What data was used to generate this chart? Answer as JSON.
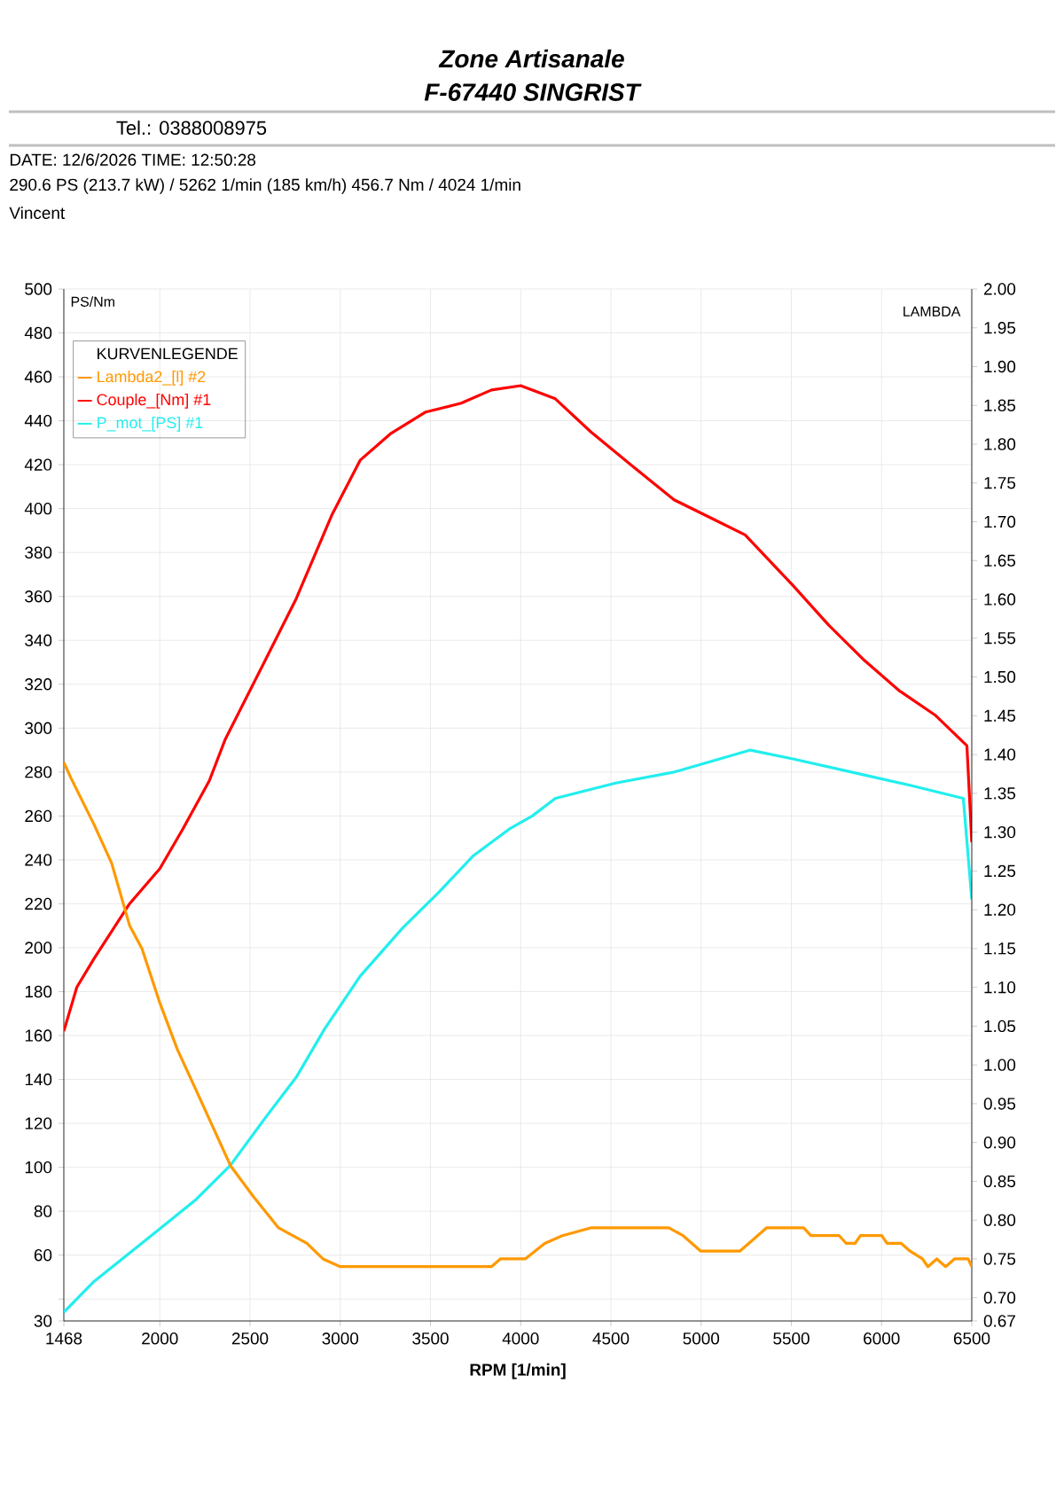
{
  "chart_data": {
    "type": "line",
    "annotations": [
      "Zone Artisanale",
      "F-67440 SINGRIST",
      "Tel.: 0388008975",
      "DATE: 12/6/2026  TIME: 12:50:28",
      "290.6 PS  (213.7 kW) / 5262 1/min (185 km/h)    456.7 Nm / 4024 1/min",
      "Vincent"
    ],
    "xlabel": "RPM  [1/min]",
    "ylabel": "PS/Nm",
    "y2label": "LAMBDA",
    "legend_title": "KURVENLEGENDE",
    "xlim": [
      1468,
      6500
    ],
    "xticks": [
      1468,
      2000,
      2500,
      3000,
      3500,
      4000,
      4500,
      5000,
      5500,
      6000,
      6500
    ],
    "ylim": [
      30,
      500
    ],
    "yticks": [
      30,
      {
        "value": 40,
        "label": null
      },
      60,
      80,
      100,
      120,
      140,
      160,
      180,
      200,
      220,
      240,
      260,
      280,
      300,
      320,
      340,
      360,
      380,
      400,
      420,
      440,
      460,
      480,
      500
    ],
    "y2lim": [
      0.67,
      2.0
    ],
    "y2ticks": [
      {
        "value": 0.67,
        "label": "0.67"
      },
      {
        "value": 0.7,
        "label": "0.70"
      },
      {
        "value": 0.75,
        "label": "0.75"
      },
      {
        "value": 0.8,
        "label": "0.80"
      },
      {
        "value": 0.85,
        "label": "0.85"
      },
      {
        "value": 0.9,
        "label": "0.90"
      },
      {
        "value": 0.95,
        "label": "0.95"
      },
      {
        "value": 1.0,
        "label": "1.00"
      },
      {
        "value": 1.05,
        "label": "1.05"
      },
      {
        "value": 1.1,
        "label": "1.10"
      },
      {
        "value": 1.15,
        "label": "1.15"
      },
      {
        "value": 1.2,
        "label": "1.20"
      },
      {
        "value": 1.25,
        "label": "1.25"
      },
      {
        "value": 1.3,
        "label": "1.30"
      },
      {
        "value": 1.35,
        "label": "1.35"
      },
      {
        "value": 1.4,
        "label": "1.40"
      },
      {
        "value": 1.45,
        "label": "1.45"
      },
      {
        "value": 1.5,
        "label": "1.50"
      },
      {
        "value": 1.55,
        "label": "1.55"
      },
      {
        "value": 1.6,
        "label": "1.60"
      },
      {
        "value": 1.65,
        "label": "1.65"
      },
      {
        "value": 1.7,
        "label": "1.70"
      },
      {
        "value": 1.75,
        "label": "1.75"
      },
      {
        "value": 1.8,
        "label": "1.80"
      },
      {
        "value": 1.85,
        "label": "1.85"
      },
      {
        "value": 1.9,
        "label": "1.90"
      },
      {
        "value": 1.95,
        "label": "1.95"
      },
      {
        "value": 2.0,
        "label": "2.00"
      }
    ],
    "grid": true,
    "legend": "top left",
    "marker": "none",
    "line_style": "solid",
    "series": [
      {
        "name": "Lambda2_[l] #2",
        "color": "#ff9900",
        "axis": "y2",
        "x": [
          1468,
          1507,
          1635,
          1733,
          1832,
          1901,
          2000,
          2097,
          2196,
          2294,
          2392,
          2520,
          2658,
          2815,
          2904,
          3000,
          3838,
          3887,
          4025,
          4133,
          4231,
          4388,
          4821,
          4900,
          4949,
          4998,
          5214,
          5264,
          5313,
          5362,
          5568,
          5608,
          5765,
          5804,
          5853,
          5883,
          6001,
          6030,
          6109,
          6158,
          6227,
          6257,
          6306,
          6355,
          6404,
          6480,
          6500
        ],
        "values": [
          1.39,
          1.37,
          1.31,
          1.26,
          1.18,
          1.15,
          1.08,
          1.02,
          0.97,
          0.92,
          0.87,
          0.83,
          0.79,
          0.77,
          0.75,
          0.74,
          0.74,
          0.75,
          0.75,
          0.77,
          0.78,
          0.79,
          0.79,
          0.78,
          0.77,
          0.76,
          0.76,
          0.77,
          0.78,
          0.79,
          0.79,
          0.78,
          0.78,
          0.77,
          0.77,
          0.78,
          0.78,
          0.77,
          0.77,
          0.76,
          0.75,
          0.74,
          0.75,
          0.74,
          0.75,
          0.75,
          0.74
        ]
      },
      {
        "name": "Couple_[Nm] #1",
        "color": "#ff0000",
        "x": [
          1468,
          1540,
          1635,
          1832,
          2000,
          2127,
          2274,
          2363,
          2560,
          2756,
          2953,
          3110,
          3277,
          3474,
          3670,
          3838,
          4000,
          4192,
          4388,
          4624,
          4850,
          5047,
          5244,
          5509,
          5706,
          5903,
          6099,
          6296,
          6473,
          6500
        ],
        "values": [
          162,
          182,
          195,
          220,
          236,
          254,
          276,
          295,
          327,
          359,
          397,
          422,
          434,
          444,
          448,
          454,
          456,
          450,
          435,
          419,
          404,
          396,
          388,
          365,
          347,
          331,
          317,
          306,
          292,
          248
        ]
      },
      {
        "name": "P_mot_[PS] #1",
        "color": "#22eeee",
        "x": [
          1468,
          1635,
          2000,
          2196,
          2392,
          2589,
          2756,
          2913,
          3110,
          3346,
          3543,
          3739,
          3936,
          4064,
          4192,
          4526,
          4850,
          5018,
          5273,
          5509,
          5834,
          6158,
          6453,
          6500
        ],
        "values": [
          34,
          48,
          72,
          85,
          101,
          123,
          141,
          163,
          187,
          209,
          225,
          242,
          254,
          260,
          268,
          275,
          280,
          284,
          290,
          286,
          280,
          274,
          268,
          222
        ]
      }
    ]
  }
}
